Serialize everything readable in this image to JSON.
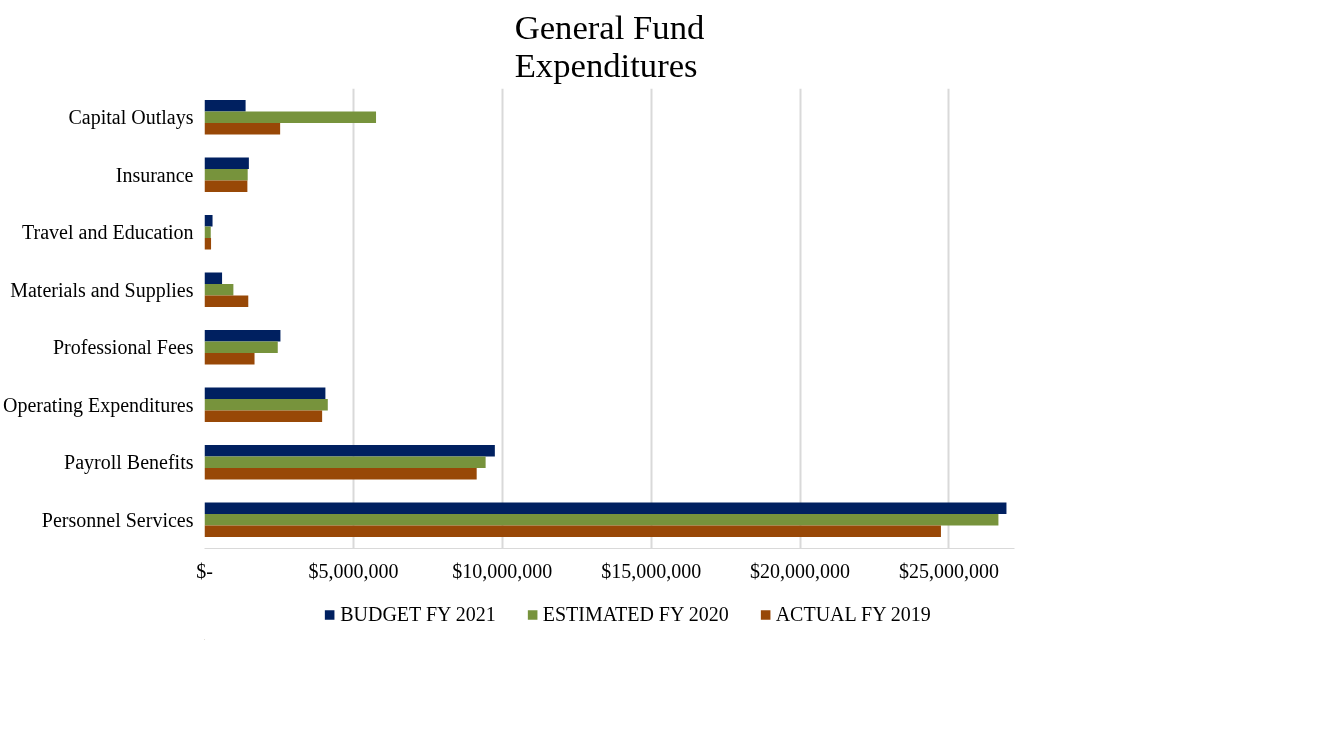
{
  "chart_data": {
    "type": "bar",
    "orientation": "horizontal",
    "title": "General Fund\nExpenditures",
    "categories": [
      "Capital Outlays",
      "Insurance",
      "Travel and Education",
      "Materials and Supplies",
      "Professional Fees",
      "Operating Expenditures",
      "Payroll Benefits",
      "Personnel Services"
    ],
    "series": [
      {
        "name": "BUDGET FY 2021",
        "color": "#002060",
        "values": [
          1380000,
          1490000,
          270000,
          590000,
          2550000,
          4060000,
          9750000,
          26930000
        ]
      },
      {
        "name": "ESTIMATED FY 2020",
        "color": "#77933c",
        "values": [
          5760000,
          1450000,
          210000,
          970000,
          2460000,
          4140000,
          9440000,
          26660000
        ]
      },
      {
        "name": "ACTUAL FY 2019",
        "color": "#984807",
        "values": [
          2540000,
          1440000,
          220000,
          1470000,
          1680000,
          3950000,
          9140000,
          24730000
        ]
      }
    ],
    "xlim": [
      0,
      27200000
    ],
    "xticks": [
      {
        "value": 0,
        "label": "$-"
      },
      {
        "value": 5000000,
        "label": "$5,000,000"
      },
      {
        "value": 10000000,
        "label": "$10,000,000"
      },
      {
        "value": 15000000,
        "label": "$15,000,000"
      },
      {
        "value": 20000000,
        "label": "$20,000,000"
      },
      {
        "value": 25000000,
        "label": "$25,000,000"
      }
    ],
    "grid": "x",
    "legend": "bottom"
  }
}
